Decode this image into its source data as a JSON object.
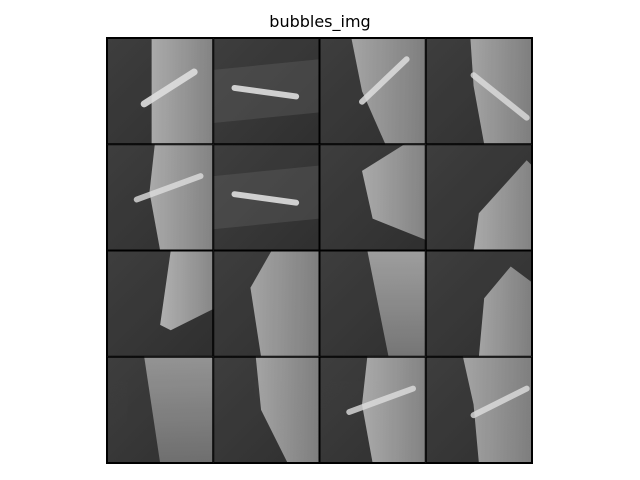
{
  "title": "bubbles_img",
  "grid": {
    "rows": 4,
    "cols": 4
  },
  "tiles": [
    {
      "id": "r1c1",
      "variant": "bright-right-wedge-diagonal"
    },
    {
      "id": "r1c2",
      "variant": "horizontal-streak"
    },
    {
      "id": "r1c3",
      "variant": "center-x-cross"
    },
    {
      "id": "r1c4",
      "variant": "right-x-cross"
    },
    {
      "id": "r2c1",
      "variant": "wedge-with-streak"
    },
    {
      "id": "r2c2",
      "variant": "horizontal-streak"
    },
    {
      "id": "r2c3",
      "variant": "diagonal-wedge"
    },
    {
      "id": "r2c4",
      "variant": "right-diagonal-wedge"
    },
    {
      "id": "r3c1",
      "variant": "lower-wedge"
    },
    {
      "id": "r3c2",
      "variant": "center-wedge"
    },
    {
      "id": "r3c3",
      "variant": "vertical-triangle"
    },
    {
      "id": "r3c4",
      "variant": "right-wedge"
    },
    {
      "id": "r4c1",
      "variant": "tall-wedge"
    },
    {
      "id": "r4c2",
      "variant": "slanted-wedge"
    },
    {
      "id": "r4c3",
      "variant": "wedge-with-streak"
    },
    {
      "id": "r4c4",
      "variant": "right-wedge-with-streak"
    }
  ]
}
